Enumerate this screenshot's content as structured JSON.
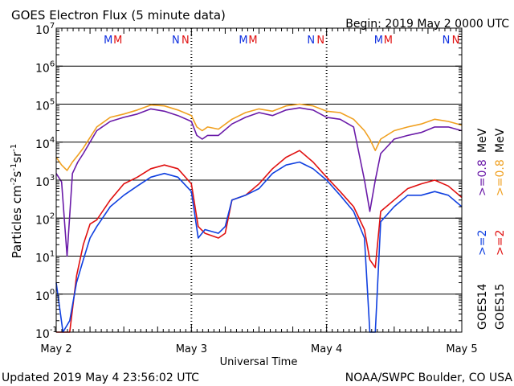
{
  "header": {
    "title": "GOES Electron Flux (5 minute data)",
    "begin": "Begin: 2019 May 2 0000 UTC"
  },
  "footer": {
    "updated": "Updated 2019 May  4 23:56:02 UTC",
    "credit": "NOAA/SWPC Boulder, CO USA"
  },
  "markers": {
    "positions": [
      0.42,
      0.92,
      1.42,
      1.92,
      2.42,
      2.92
    ],
    "labels": [
      "M",
      "M",
      "N",
      "N",
      "M",
      "M",
      "N",
      "N",
      "M",
      "M",
      "N",
      "N"
    ],
    "colors": [
      "#1030e0",
      "#e01010",
      "#1030e0",
      "#e01010",
      "#1030e0",
      "#e01010",
      "#1030e0",
      "#e01010",
      "#1030e0",
      "#e01010",
      "#1030e0",
      "#e01010"
    ]
  },
  "legend": {
    "goes14": "GOES14",
    "goes15": "GOES15",
    "g14_high": ">=0.8",
    "g15_high": ">=0.8",
    "g14_low": ">=2",
    "g15_low": ">=2",
    "unit": "MeV"
  },
  "colors": {
    "g14_high": "#6a1aa8",
    "g15_high": "#f0a020",
    "g14_low": "#1040e0",
    "g15_low": "#e01010"
  },
  "chart_data": {
    "type": "line",
    "yscale": "log",
    "ylim": [
      0.1,
      10000000
    ],
    "xlim": [
      0,
      3
    ],
    "ylabel": "Particles cm-2s-1sr-1",
    "xlabel": "Universal Time",
    "x_ticks": [
      "May 2",
      "May 3",
      "May 4",
      "May 5"
    ],
    "y_ticks": [
      {
        "base": "10",
        "exp": "-1"
      },
      {
        "base": "10",
        "exp": "0"
      },
      {
        "base": "10",
        "exp": "1"
      },
      {
        "base": "10",
        "exp": "2"
      },
      {
        "base": "10",
        "exp": "3"
      },
      {
        "base": "10",
        "exp": "4"
      },
      {
        "base": "10",
        "exp": "5"
      },
      {
        "base": "10",
        "exp": "6"
      },
      {
        "base": "10",
        "exp": "7"
      }
    ],
    "threshold": 1000,
    "series": [
      {
        "key": "g15_high",
        "x": [
          0,
          0.04,
          0.08,
          0.12,
          0.16,
          0.2,
          0.3,
          0.4,
          0.5,
          0.6,
          0.7,
          0.8,
          0.9,
          1.0,
          1.04,
          1.08,
          1.12,
          1.2,
          1.3,
          1.4,
          1.5,
          1.6,
          1.7,
          1.8,
          1.9,
          2.0,
          2.1,
          2.2,
          2.28,
          2.32,
          2.36,
          2.4,
          2.5,
          2.6,
          2.7,
          2.8,
          2.9,
          3.0
        ],
        "y": [
          4000,
          2500,
          1800,
          3000,
          4500,
          7000,
          25000,
          45000,
          55000,
          70000,
          95000,
          90000,
          70000,
          50000,
          25000,
          20000,
          25000,
          22000,
          40000,
          60000,
          75000,
          65000,
          90000,
          100000,
          90000,
          65000,
          60000,
          40000,
          20000,
          12000,
          6000,
          12000,
          20000,
          25000,
          30000,
          40000,
          35000,
          28000
        ]
      },
      {
        "key": "g14_high",
        "x": [
          0,
          0.04,
          0.08,
          0.12,
          0.16,
          0.2,
          0.3,
          0.4,
          0.5,
          0.6,
          0.7,
          0.8,
          0.9,
          1.0,
          1.04,
          1.08,
          1.12,
          1.2,
          1.3,
          1.4,
          1.5,
          1.6,
          1.7,
          1.8,
          1.9,
          2.0,
          2.1,
          2.2,
          2.28,
          2.32,
          2.36,
          2.4,
          2.5,
          2.6,
          2.7,
          2.8,
          2.9,
          3.0
        ],
        "y": [
          1500,
          900,
          10,
          1500,
          3000,
          5000,
          20000,
          35000,
          45000,
          55000,
          75000,
          65000,
          50000,
          35000,
          15000,
          12000,
          15000,
          15000,
          30000,
          45000,
          60000,
          50000,
          70000,
          80000,
          70000,
          45000,
          40000,
          25000,
          1000,
          150,
          1000,
          5000,
          12000,
          15000,
          18000,
          25000,
          25000,
          20000
        ]
      },
      {
        "key": "g15_low",
        "x": [
          0,
          0.05,
          0.1,
          0.15,
          0.2,
          0.25,
          0.3,
          0.4,
          0.5,
          0.6,
          0.7,
          0.8,
          0.9,
          1.0,
          1.05,
          1.1,
          1.2,
          1.25,
          1.3,
          1.4,
          1.5,
          1.6,
          1.7,
          1.8,
          1.9,
          2.0,
          2.1,
          2.2,
          2.28,
          2.32,
          2.36,
          2.4,
          2.5,
          2.6,
          2.7,
          2.8,
          2.9,
          3.0
        ],
        "y": [
          0.1,
          0.1,
          0.1,
          3,
          20,
          70,
          90,
          300,
          800,
          1200,
          2000,
          2500,
          2000,
          800,
          60,
          40,
          30,
          40,
          300,
          400,
          800,
          2000,
          4000,
          6000,
          3000,
          1200,
          500,
          200,
          50,
          8,
          5,
          150,
          300,
          600,
          800,
          1000,
          700,
          350
        ]
      },
      {
        "key": "g14_low",
        "x": [
          0,
          0.05,
          0.1,
          0.15,
          0.2,
          0.25,
          0.3,
          0.4,
          0.5,
          0.6,
          0.7,
          0.8,
          0.9,
          1.0,
          1.05,
          1.1,
          1.2,
          1.25,
          1.3,
          1.4,
          1.5,
          1.6,
          1.7,
          1.8,
          1.9,
          2.0,
          2.1,
          2.2,
          2.28,
          2.32,
          2.36,
          2.4,
          2.5,
          2.6,
          2.7,
          2.8,
          2.9,
          3.0
        ],
        "y": [
          2,
          0.1,
          0.2,
          2,
          8,
          30,
          60,
          200,
          400,
          700,
          1200,
          1500,
          1200,
          500,
          30,
          50,
          40,
          60,
          300,
          400,
          600,
          1500,
          2500,
          3000,
          2000,
          1000,
          400,
          150,
          30,
          0.1,
          0.1,
          80,
          200,
          400,
          400,
          500,
          400,
          200
        ]
      }
    ]
  }
}
